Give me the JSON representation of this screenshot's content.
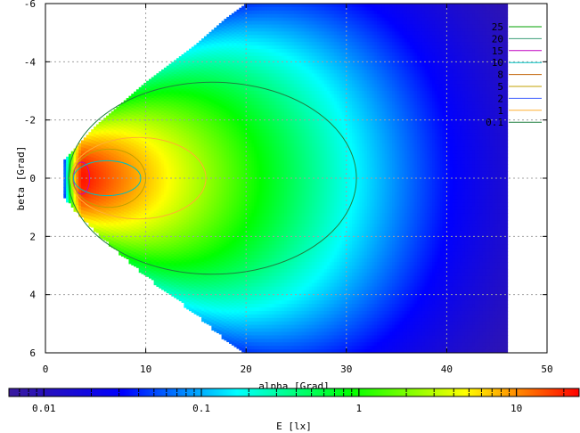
{
  "chart_data": {
    "type": "heatmap",
    "xlabel": "alpha [Grad]",
    "ylabel": "beta [Grad]",
    "colorbar_label": "E [lx]",
    "xlim": [
      0,
      50
    ],
    "ylim_top_to_bottom": [
      -6,
      6
    ],
    "x_ticks": [
      0,
      10,
      20,
      30,
      40,
      50
    ],
    "x_tick_labels": [
      "0",
      "10",
      "20",
      "30",
      "40",
      "50"
    ],
    "y_ticks": [
      -6,
      -4,
      -2,
      0,
      2,
      4,
      6
    ],
    "y_tick_labels": [
      "-6",
      "-4",
      "-2",
      "0",
      "2",
      "4",
      "6"
    ],
    "grid": true,
    "legend_position": "top-right",
    "colorbar": {
      "scale": "log",
      "range": [
        0.006,
        25
      ],
      "ticks": [
        0.01,
        0.1,
        1,
        10
      ],
      "tick_labels": [
        "0.01",
        "0.1",
        "1",
        "10"
      ],
      "colors": [
        "#3a1a9e",
        "#0000ff",
        "#00ffff",
        "#00ff00",
        "#ffff00",
        "#ff0000"
      ]
    },
    "series": [
      {
        "name": "25",
        "color": "#00a000",
        "level": 25
      },
      {
        "name": "20",
        "color": "#3c9e78",
        "level": 20
      },
      {
        "name": "15",
        "color": "#c000c0",
        "level": 15
      },
      {
        "name": "10",
        "color": "#00c0c0",
        "level": 10
      },
      {
        "name": "8",
        "color": "#c06000",
        "level": 8
      },
      {
        "name": "5",
        "color": "#c0a000",
        "level": 5
      },
      {
        "name": "2",
        "color": "#4060ff",
        "level": 2
      },
      {
        "name": "1",
        "color": "#ffb030",
        "level": 1
      },
      {
        "name": "0.1",
        "color": "#208040",
        "level": 0.1
      }
    ],
    "field": {
      "envelope": [
        {
          "x": 1.8,
          "half_width": 0.6
        },
        {
          "x": 5,
          "half_width": 1.8
        },
        {
          "x": 10,
          "half_width": 3.3
        },
        {
          "x": 15,
          "half_width": 4.6
        },
        {
          "x": 18,
          "half_width": 5.5
        },
        {
          "x": 20,
          "half_width": 6
        },
        {
          "x": 46,
          "half_width": 6
        }
      ],
      "x_max": 46,
      "peak": {
        "x": 3.8,
        "y": 0,
        "value": 22
      },
      "levels_extent": [
        {
          "level": 15,
          "x_min": 2.8,
          "x_max": 4.4,
          "half_height": 0.55
        },
        {
          "level": 10,
          "x_min": 2.8,
          "x_max": 9.5,
          "half_height": 0.6
        },
        {
          "level": 5,
          "x_min": 2.7,
          "x_max": 10,
          "half_height": 1
        },
        {
          "level": 1,
          "x_min": 2.5,
          "x_max": 16,
          "half_height": 1.4
        },
        {
          "level": 0.1,
          "x_min": 2.3,
          "x_max": 31,
          "half_height": 3.3
        }
      ]
    }
  }
}
